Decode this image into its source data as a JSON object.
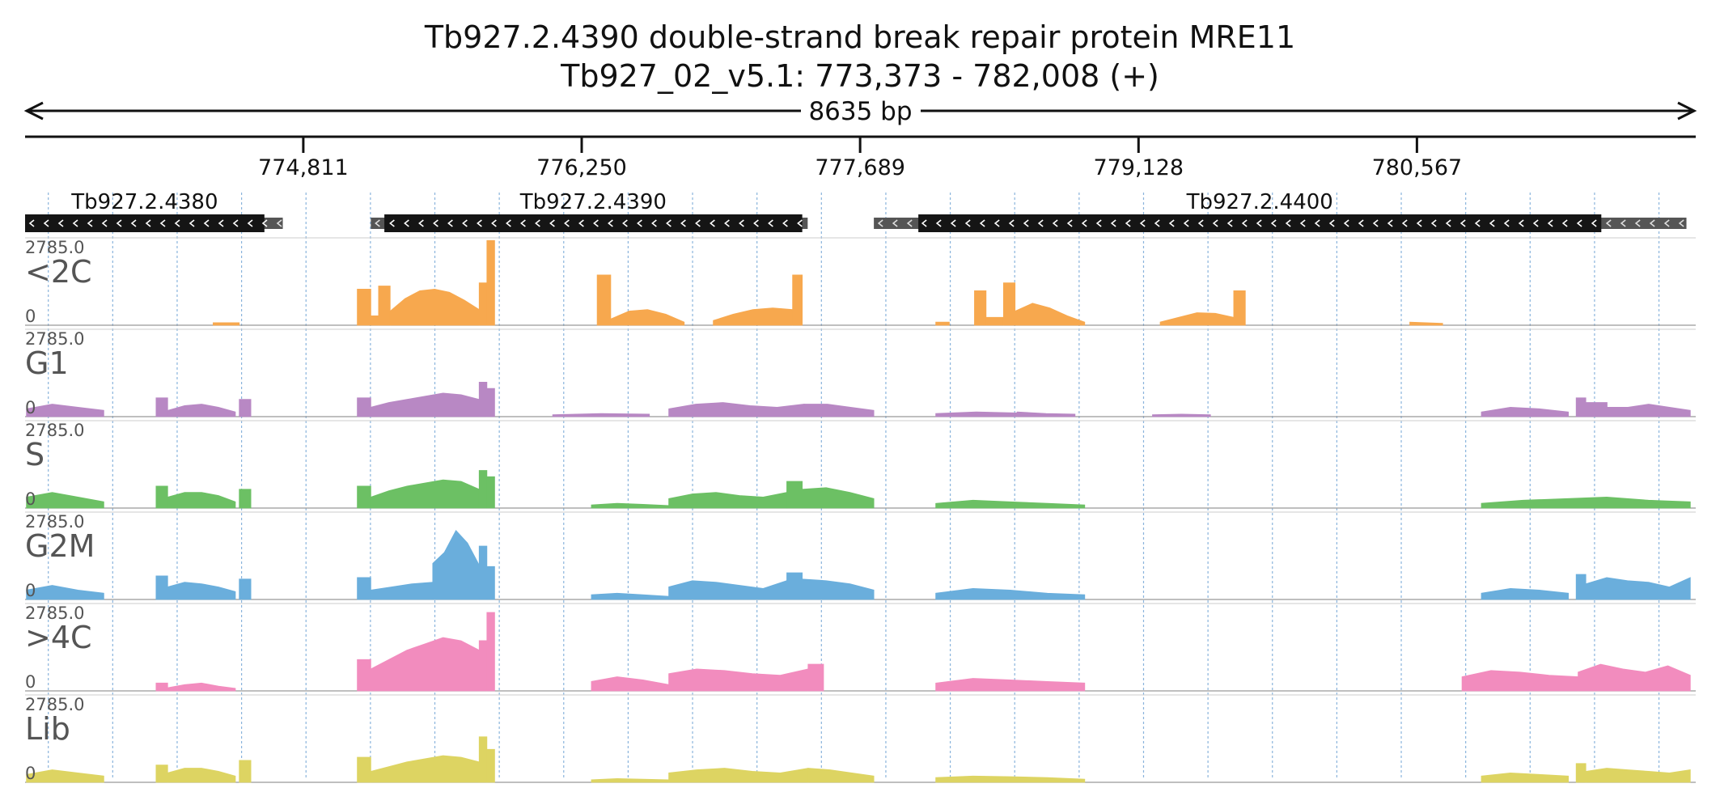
{
  "title": {
    "line1": "Tb927.2.4390  double-strand break repair protein MRE11",
    "line2": "Tb927_02_v5.1: 773,373 - 782,008 (+)"
  },
  "region": {
    "start": 773373,
    "end": 782008,
    "length_label": "8635 bp"
  },
  "ruler": {
    "ticks": [
      {
        "pos": 774811,
        "label": "774,811"
      },
      {
        "pos": 776250,
        "label": "776,250"
      },
      {
        "pos": 777689,
        "label": "777,689"
      },
      {
        "pos": 779128,
        "label": "779,128"
      },
      {
        "pos": 780567,
        "label": "780,567"
      }
    ]
  },
  "genes": [
    {
      "name": "Tb927.2.4380",
      "strand": "-",
      "start": 773373,
      "end": 774705,
      "cds_start": 773373,
      "cds_end": 774610
    },
    {
      "name": "Tb927.2.4390",
      "strand": "-",
      "start": 775160,
      "end": 777418,
      "cds_start": 775230,
      "cds_end": 777390
    },
    {
      "name": "Tb927.2.4400",
      "strand": "-",
      "start": 777760,
      "end": 781960,
      "cds_start": 777990,
      "cds_end": 781520
    }
  ],
  "tracks": [
    {
      "label": "<2C",
      "max_label": "2785.0",
      "min_label": "0",
      "color": "#f7a84e"
    },
    {
      "label": "G1",
      "max_label": "2785.0",
      "min_label": "0",
      "color": "#b888c4"
    },
    {
      "label": "S",
      "max_label": "2785.0",
      "min_label": "0",
      "color": "#6cc064"
    },
    {
      "label": "G2M",
      "max_label": "2785.0",
      "min_label": "0",
      "color": "#6aaedc"
    },
    {
      "label": ">4C",
      "max_label": "2785.0",
      "min_label": "0",
      "color": "#f28cbe"
    },
    {
      "label": "Lib",
      "max_label": "2785.0",
      "min_label": "0",
      "color": "#ddd462"
    }
  ],
  "chart_data": {
    "type": "area",
    "x_unit": "genomic position (bp)",
    "ylim": [
      0,
      2785.0
    ],
    "series": [
      {
        "name": "<2C",
        "segments": [
          {
            "start": 774345,
            "end": 774480,
            "values": [
              80,
              80
            ]
          },
          {
            "start": 775090,
            "end": 775160,
            "values": [
              1150,
              1150
            ]
          },
          {
            "start": 775160,
            "end": 775200,
            "values": [
              300,
              300
            ]
          },
          {
            "start": 775200,
            "end": 775260,
            "values": [
              1250,
              1250
            ]
          },
          {
            "start": 775260,
            "end": 775720,
            "values": [
              450,
              850,
              1100,
              1150,
              1050,
              800,
              500
            ]
          },
          {
            "start": 775720,
            "end": 775760,
            "values": [
              1350,
              1350
            ]
          },
          {
            "start": 775760,
            "end": 775800,
            "values": [
              2700,
              2700
            ]
          },
          {
            "start": 776330,
            "end": 776400,
            "values": [
              1600,
              1600
            ]
          },
          {
            "start": 776400,
            "end": 776780,
            "values": [
              200,
              450,
              500,
              350,
              100
            ]
          },
          {
            "start": 776930,
            "end": 777340,
            "values": [
              150,
              350,
              500,
              550,
              500
            ]
          },
          {
            "start": 777340,
            "end": 777390,
            "values": [
              1600,
              1600
            ]
          },
          {
            "start": 778080,
            "end": 778150,
            "values": [
              100,
              100
            ]
          },
          {
            "start": 778280,
            "end": 778340,
            "values": [
              1100,
              1100
            ]
          },
          {
            "start": 778340,
            "end": 778430,
            "values": [
              250,
              250
            ]
          },
          {
            "start": 778430,
            "end": 778490,
            "values": [
              1350,
              1350
            ]
          },
          {
            "start": 778490,
            "end": 778850,
            "values": [
              450,
              700,
              550,
              300,
              100
            ]
          },
          {
            "start": 779240,
            "end": 779620,
            "values": [
              100,
              250,
              400,
              380,
              250
            ]
          },
          {
            "start": 779620,
            "end": 779680,
            "values": [
              1100,
              1100
            ]
          },
          {
            "start": 780530,
            "end": 780700,
            "values": [
              100,
              60
            ]
          }
        ]
      },
      {
        "name": "G1",
        "segments": [
          {
            "start": 773380,
            "end": 773780,
            "values": [
              250,
              400,
              300,
              200
            ]
          },
          {
            "start": 774050,
            "end": 774110,
            "values": [
              600,
              600
            ]
          },
          {
            "start": 774110,
            "end": 774460,
            "values": [
              200,
              350,
              400,
              300,
              150
            ]
          },
          {
            "start": 774480,
            "end": 774540,
            "values": [
              550,
              550
            ]
          },
          {
            "start": 775090,
            "end": 775160,
            "values": [
              600,
              600
            ]
          },
          {
            "start": 775160,
            "end": 775720,
            "values": [
              300,
              450,
              550,
              650,
              750,
              700,
              550
            ]
          },
          {
            "start": 775720,
            "end": 775760,
            "values": [
              1100,
              1100
            ]
          },
          {
            "start": 775760,
            "end": 775800,
            "values": [
              900,
              900
            ]
          },
          {
            "start": 776100,
            "end": 776600,
            "values": [
              60,
              100,
              80
            ]
          },
          {
            "start": 776700,
            "end": 777400,
            "values": [
              250,
              400,
              450,
              350,
              300,
              400
            ]
          },
          {
            "start": 777400,
            "end": 777760,
            "values": [
              400,
              400,
              300,
              200
            ]
          },
          {
            "start": 778080,
            "end": 778500,
            "values": [
              100,
              150,
              120
            ]
          },
          {
            "start": 778500,
            "end": 778800,
            "values": [
              150,
              100,
              80
            ]
          },
          {
            "start": 779200,
            "end": 779500,
            "values": [
              60,
              80,
              60
            ]
          },
          {
            "start": 780900,
            "end": 781350,
            "values": [
              150,
              300,
              250,
              150
            ]
          },
          {
            "start": 781390,
            "end": 781440,
            "values": [
              600,
              600
            ]
          },
          {
            "start": 781440,
            "end": 781550,
            "values": [
              450,
              450
            ]
          },
          {
            "start": 781550,
            "end": 781980,
            "values": [
              300,
              300,
              400,
              300,
              200
            ]
          }
        ]
      },
      {
        "name": "S",
        "segments": [
          {
            "start": 773380,
            "end": 773780,
            "values": [
              350,
              500,
              350,
              200
            ]
          },
          {
            "start": 774050,
            "end": 774110,
            "values": [
              700,
              700
            ]
          },
          {
            "start": 774110,
            "end": 774460,
            "values": [
              350,
              500,
              500,
              400,
              200
            ]
          },
          {
            "start": 774480,
            "end": 774540,
            "values": [
              600,
              600
            ]
          },
          {
            "start": 775090,
            "end": 775160,
            "values": [
              700,
              700
            ]
          },
          {
            "start": 775160,
            "end": 775720,
            "values": [
              350,
              550,
              700,
              800,
              900,
              850,
              600
            ]
          },
          {
            "start": 775720,
            "end": 775760,
            "values": [
              1200,
              1200
            ]
          },
          {
            "start": 775760,
            "end": 775800,
            "values": [
              1000,
              1000
            ]
          },
          {
            "start": 776300,
            "end": 776700,
            "values": [
              100,
              150,
              120,
              80
            ]
          },
          {
            "start": 776700,
            "end": 777310,
            "values": [
              300,
              450,
              500,
              400,
              350,
              500
            ]
          },
          {
            "start": 777310,
            "end": 777390,
            "values": [
              850,
              850
            ]
          },
          {
            "start": 777390,
            "end": 777760,
            "values": [
              600,
              650,
              500,
              300
            ]
          },
          {
            "start": 778080,
            "end": 778850,
            "values": [
              150,
              250,
              200,
              150,
              100
            ]
          },
          {
            "start": 780900,
            "end": 781980,
            "values": [
              150,
              250,
              300,
              350,
              250,
              200
            ]
          }
        ]
      },
      {
        "name": "G2M",
        "segments": [
          {
            "start": 773380,
            "end": 773780,
            "values": [
              300,
              450,
              300,
              200
            ]
          },
          {
            "start": 774050,
            "end": 774110,
            "values": [
              750,
              750
            ]
          },
          {
            "start": 774110,
            "end": 774460,
            "values": [
              400,
              550,
              500,
              400,
              250
            ]
          },
          {
            "start": 774480,
            "end": 774540,
            "values": [
              650,
              650
            ]
          },
          {
            "start": 775090,
            "end": 775160,
            "values": [
              700,
              700
            ]
          },
          {
            "start": 775160,
            "end": 775480,
            "values": [
              300,
              400,
              500,
              550
            ]
          },
          {
            "start": 775480,
            "end": 775720,
            "values": [
              1150,
              1500,
              2200,
              1800,
              1100
            ]
          },
          {
            "start": 775720,
            "end": 775760,
            "values": [
              1700,
              1700
            ]
          },
          {
            "start": 775760,
            "end": 775800,
            "values": [
              1050,
              1050
            ]
          },
          {
            "start": 776300,
            "end": 776700,
            "values": [
              150,
              200,
              150,
              100
            ]
          },
          {
            "start": 776700,
            "end": 777310,
            "values": [
              400,
              600,
              550,
              450,
              350,
              600
            ]
          },
          {
            "start": 777310,
            "end": 777390,
            "values": [
              850,
              850
            ]
          },
          {
            "start": 777390,
            "end": 777760,
            "values": [
              650,
              600,
              500,
              300
            ]
          },
          {
            "start": 778080,
            "end": 778850,
            "values": [
              200,
              350,
              300,
              200,
              150
            ]
          },
          {
            "start": 780900,
            "end": 781350,
            "values": [
              200,
              350,
              300,
              200
            ]
          },
          {
            "start": 781390,
            "end": 781440,
            "values": [
              800,
              800
            ]
          },
          {
            "start": 781440,
            "end": 781980,
            "values": [
              500,
              700,
              600,
              550,
              400,
              700
            ]
          }
        ]
      },
      {
        "name": ">4C",
        "segments": [
          {
            "start": 774050,
            "end": 774110,
            "values": [
              250,
              250
            ]
          },
          {
            "start": 774110,
            "end": 774460,
            "values": [
              100,
              200,
              250,
              150,
              80
            ]
          },
          {
            "start": 775090,
            "end": 775160,
            "values": [
              1000,
              1000
            ]
          },
          {
            "start": 775160,
            "end": 775720,
            "values": [
              700,
              1000,
              1300,
              1500,
              1700,
              1600,
              1300
            ]
          },
          {
            "start": 775720,
            "end": 775760,
            "values": [
              1600,
              1600
            ]
          },
          {
            "start": 775760,
            "end": 775800,
            "values": [
              2500,
              2500
            ]
          },
          {
            "start": 776300,
            "end": 776700,
            "values": [
              300,
              450,
              350,
              200
            ]
          },
          {
            "start": 776700,
            "end": 777420,
            "values": [
              550,
              700,
              650,
              550,
              500,
              700
            ]
          },
          {
            "start": 777420,
            "end": 777500,
            "values": [
              850,
              850
            ]
          },
          {
            "start": 778080,
            "end": 778850,
            "values": [
              250,
              400,
              350,
              300,
              250
            ]
          },
          {
            "start": 780800,
            "end": 781400,
            "values": [
              450,
              650,
              600,
              500,
              450
            ]
          },
          {
            "start": 781400,
            "end": 781980,
            "values": [
              600,
              850,
              700,
              600,
              800,
              500
            ]
          }
        ]
      },
      {
        "name": "Lib",
        "segments": [
          {
            "start": 773380,
            "end": 773780,
            "values": [
              250,
              400,
              300,
              200
            ]
          },
          {
            "start": 774050,
            "end": 774110,
            "values": [
              550,
              550
            ]
          },
          {
            "start": 774110,
            "end": 774460,
            "values": [
              300,
              450,
              450,
              350,
              200
            ]
          },
          {
            "start": 774480,
            "end": 774540,
            "values": [
              700,
              700
            ]
          },
          {
            "start": 775090,
            "end": 775160,
            "values": [
              800,
              800
            ]
          },
          {
            "start": 775160,
            "end": 775720,
            "values": [
              350,
              500,
              650,
              750,
              850,
              800,
              650
            ]
          },
          {
            "start": 775720,
            "end": 775760,
            "values": [
              1450,
              1450
            ]
          },
          {
            "start": 775760,
            "end": 775800,
            "values": [
              1050,
              1050
            ]
          },
          {
            "start": 776300,
            "end": 776700,
            "values": [
              80,
              120,
              100,
              80
            ]
          },
          {
            "start": 776700,
            "end": 777420,
            "values": [
              300,
              400,
              450,
              350,
              300,
              450
            ]
          },
          {
            "start": 777420,
            "end": 777760,
            "values": [
              450,
              400,
              300,
              200
            ]
          },
          {
            "start": 778080,
            "end": 778850,
            "values": [
              150,
              200,
              180,
              150,
              100
            ]
          },
          {
            "start": 780900,
            "end": 781350,
            "values": [
              200,
              300,
              250,
              200
            ]
          },
          {
            "start": 781390,
            "end": 781440,
            "values": [
              600,
              600
            ]
          },
          {
            "start": 781440,
            "end": 781980,
            "values": [
              350,
              450,
              400,
              350,
              300,
              400
            ]
          }
        ]
      }
    ]
  }
}
